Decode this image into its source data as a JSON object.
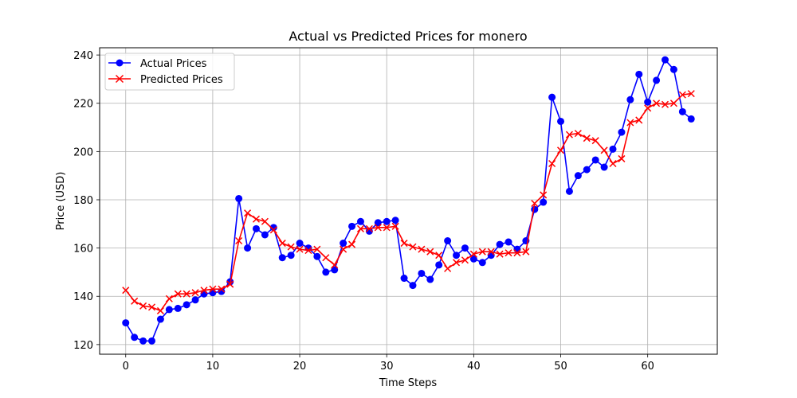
{
  "chart_data": {
    "type": "line",
    "title": "Actual vs Predicted Prices for monero",
    "xlabel": "Time Steps",
    "ylabel": "Price (USD)",
    "xlim": [
      -3,
      68
    ],
    "ylim": [
      116,
      243
    ],
    "xticks": [
      0,
      10,
      20,
      30,
      40,
      50,
      60
    ],
    "yticks": [
      120,
      140,
      160,
      180,
      200,
      220,
      240
    ],
    "grid": true,
    "legend_position": "upper-left",
    "series": [
      {
        "name": "Actual Prices",
        "color": "#0000ff",
        "marker": "circle",
        "values": [
          129,
          123,
          121.5,
          121.5,
          130.5,
          134.5,
          135,
          136.5,
          138.5,
          141,
          141.5,
          142,
          146,
          180.5,
          160,
          168,
          165.5,
          168.5,
          156,
          157,
          162,
          160,
          156.5,
          150,
          151,
          162,
          169,
          171,
          167,
          170.5,
          171,
          171.5,
          147.5,
          144.5,
          149.5,
          147,
          153,
          163,
          157,
          160,
          155.5,
          154,
          157,
          161.5,
          162.5,
          159.5,
          163,
          176,
          179,
          222.5,
          212.5,
          183.5,
          190,
          192.5,
          196.5,
          193.5,
          201,
          208,
          221.5,
          232,
          220.5,
          229.5,
          238,
          234,
          216.5,
          213.5
        ]
      },
      {
        "name": "Predicted Prices",
        "color": "#ff0000",
        "marker": "x",
        "values": [
          142.5,
          138,
          136,
          135.5,
          134,
          139,
          141,
          141,
          141.5,
          142.5,
          143,
          143,
          145,
          163,
          174.5,
          172,
          171,
          167.5,
          162,
          160.5,
          159.5,
          159,
          159.5,
          156,
          153,
          159.5,
          161.5,
          168,
          168,
          168.5,
          168.5,
          169,
          162,
          160.5,
          159.5,
          158.5,
          157,
          151.5,
          154,
          155,
          157.5,
          158.5,
          158.5,
          157.5,
          158,
          158,
          158.5,
          178.5,
          182,
          195,
          200.5,
          207,
          207.5,
          205.5,
          204.5,
          200.5,
          195,
          197,
          212,
          213,
          218,
          220,
          219.5,
          220,
          223.5,
          224
        ]
      }
    ]
  }
}
